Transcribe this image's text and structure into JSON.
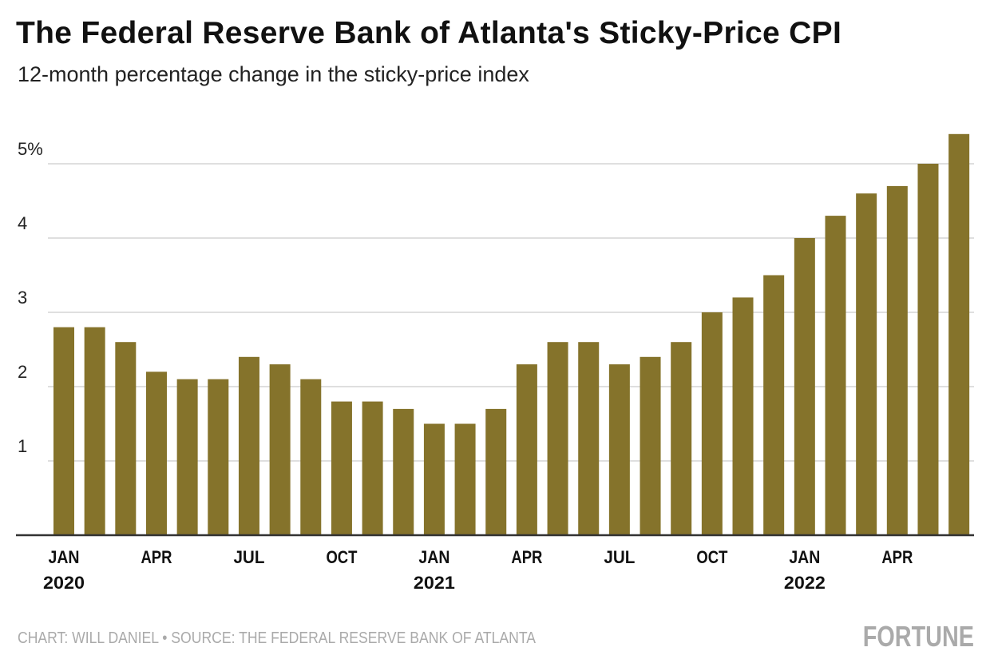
{
  "title": "The Federal Reserve Bank of Atlanta's Sticky-Price CPI",
  "subtitle": "12-month percentage change in the sticky-price index",
  "footer": {
    "source": "CHART: WILL DANIEL • SOURCE: THE FEDERAL RESERVE BANK OF ATLANTA",
    "logo": "FORTUNE"
  },
  "chart_data": {
    "type": "bar",
    "title": "The Federal Reserve Bank of Atlanta's Sticky-Price CPI",
    "subtitle": "12-month percentage change in the sticky-price index",
    "categories": [
      "2020-01",
      "2020-02",
      "2020-03",
      "2020-04",
      "2020-05",
      "2020-06",
      "2020-07",
      "2020-08",
      "2020-09",
      "2020-10",
      "2020-11",
      "2020-12",
      "2021-01",
      "2021-02",
      "2021-03",
      "2021-04",
      "2021-05",
      "2021-06",
      "2021-07",
      "2021-08",
      "2021-09",
      "2021-10",
      "2021-11",
      "2021-12",
      "2022-01",
      "2022-02",
      "2022-03",
      "2022-04",
      "2022-05",
      "2022-06"
    ],
    "values": [
      2.8,
      2.8,
      2.6,
      2.2,
      2.1,
      2.1,
      2.4,
      2.3,
      2.1,
      1.8,
      1.8,
      1.7,
      1.5,
      1.5,
      1.7,
      2.3,
      2.6,
      2.6,
      2.3,
      2.4,
      2.6,
      3.0,
      3.2,
      3.5,
      4.0,
      4.3,
      4.6,
      4.7,
      5.0,
      5.4
    ],
    "color": "#85732b",
    "ylim": [
      0,
      5.4
    ],
    "yticks": [
      {
        "value": 1,
        "label": "1"
      },
      {
        "value": 2,
        "label": "2"
      },
      {
        "value": 3,
        "label": "3"
      },
      {
        "value": 4,
        "label": "4"
      },
      {
        "value": 5,
        "label": "5%"
      }
    ],
    "xticks": [
      {
        "index": 0,
        "label": "JAN",
        "year": "2020"
      },
      {
        "index": 3,
        "label": "APR"
      },
      {
        "index": 6,
        "label": "JUL"
      },
      {
        "index": 9,
        "label": "OCT"
      },
      {
        "index": 12,
        "label": "JAN",
        "year": "2021"
      },
      {
        "index": 15,
        "label": "APR"
      },
      {
        "index": 18,
        "label": "JUL"
      },
      {
        "index": 21,
        "label": "OCT"
      },
      {
        "index": 24,
        "label": "JAN",
        "year": "2022"
      },
      {
        "index": 27,
        "label": "APR"
      }
    ],
    "grid": true,
    "xlabel": "",
    "ylabel": ""
  }
}
